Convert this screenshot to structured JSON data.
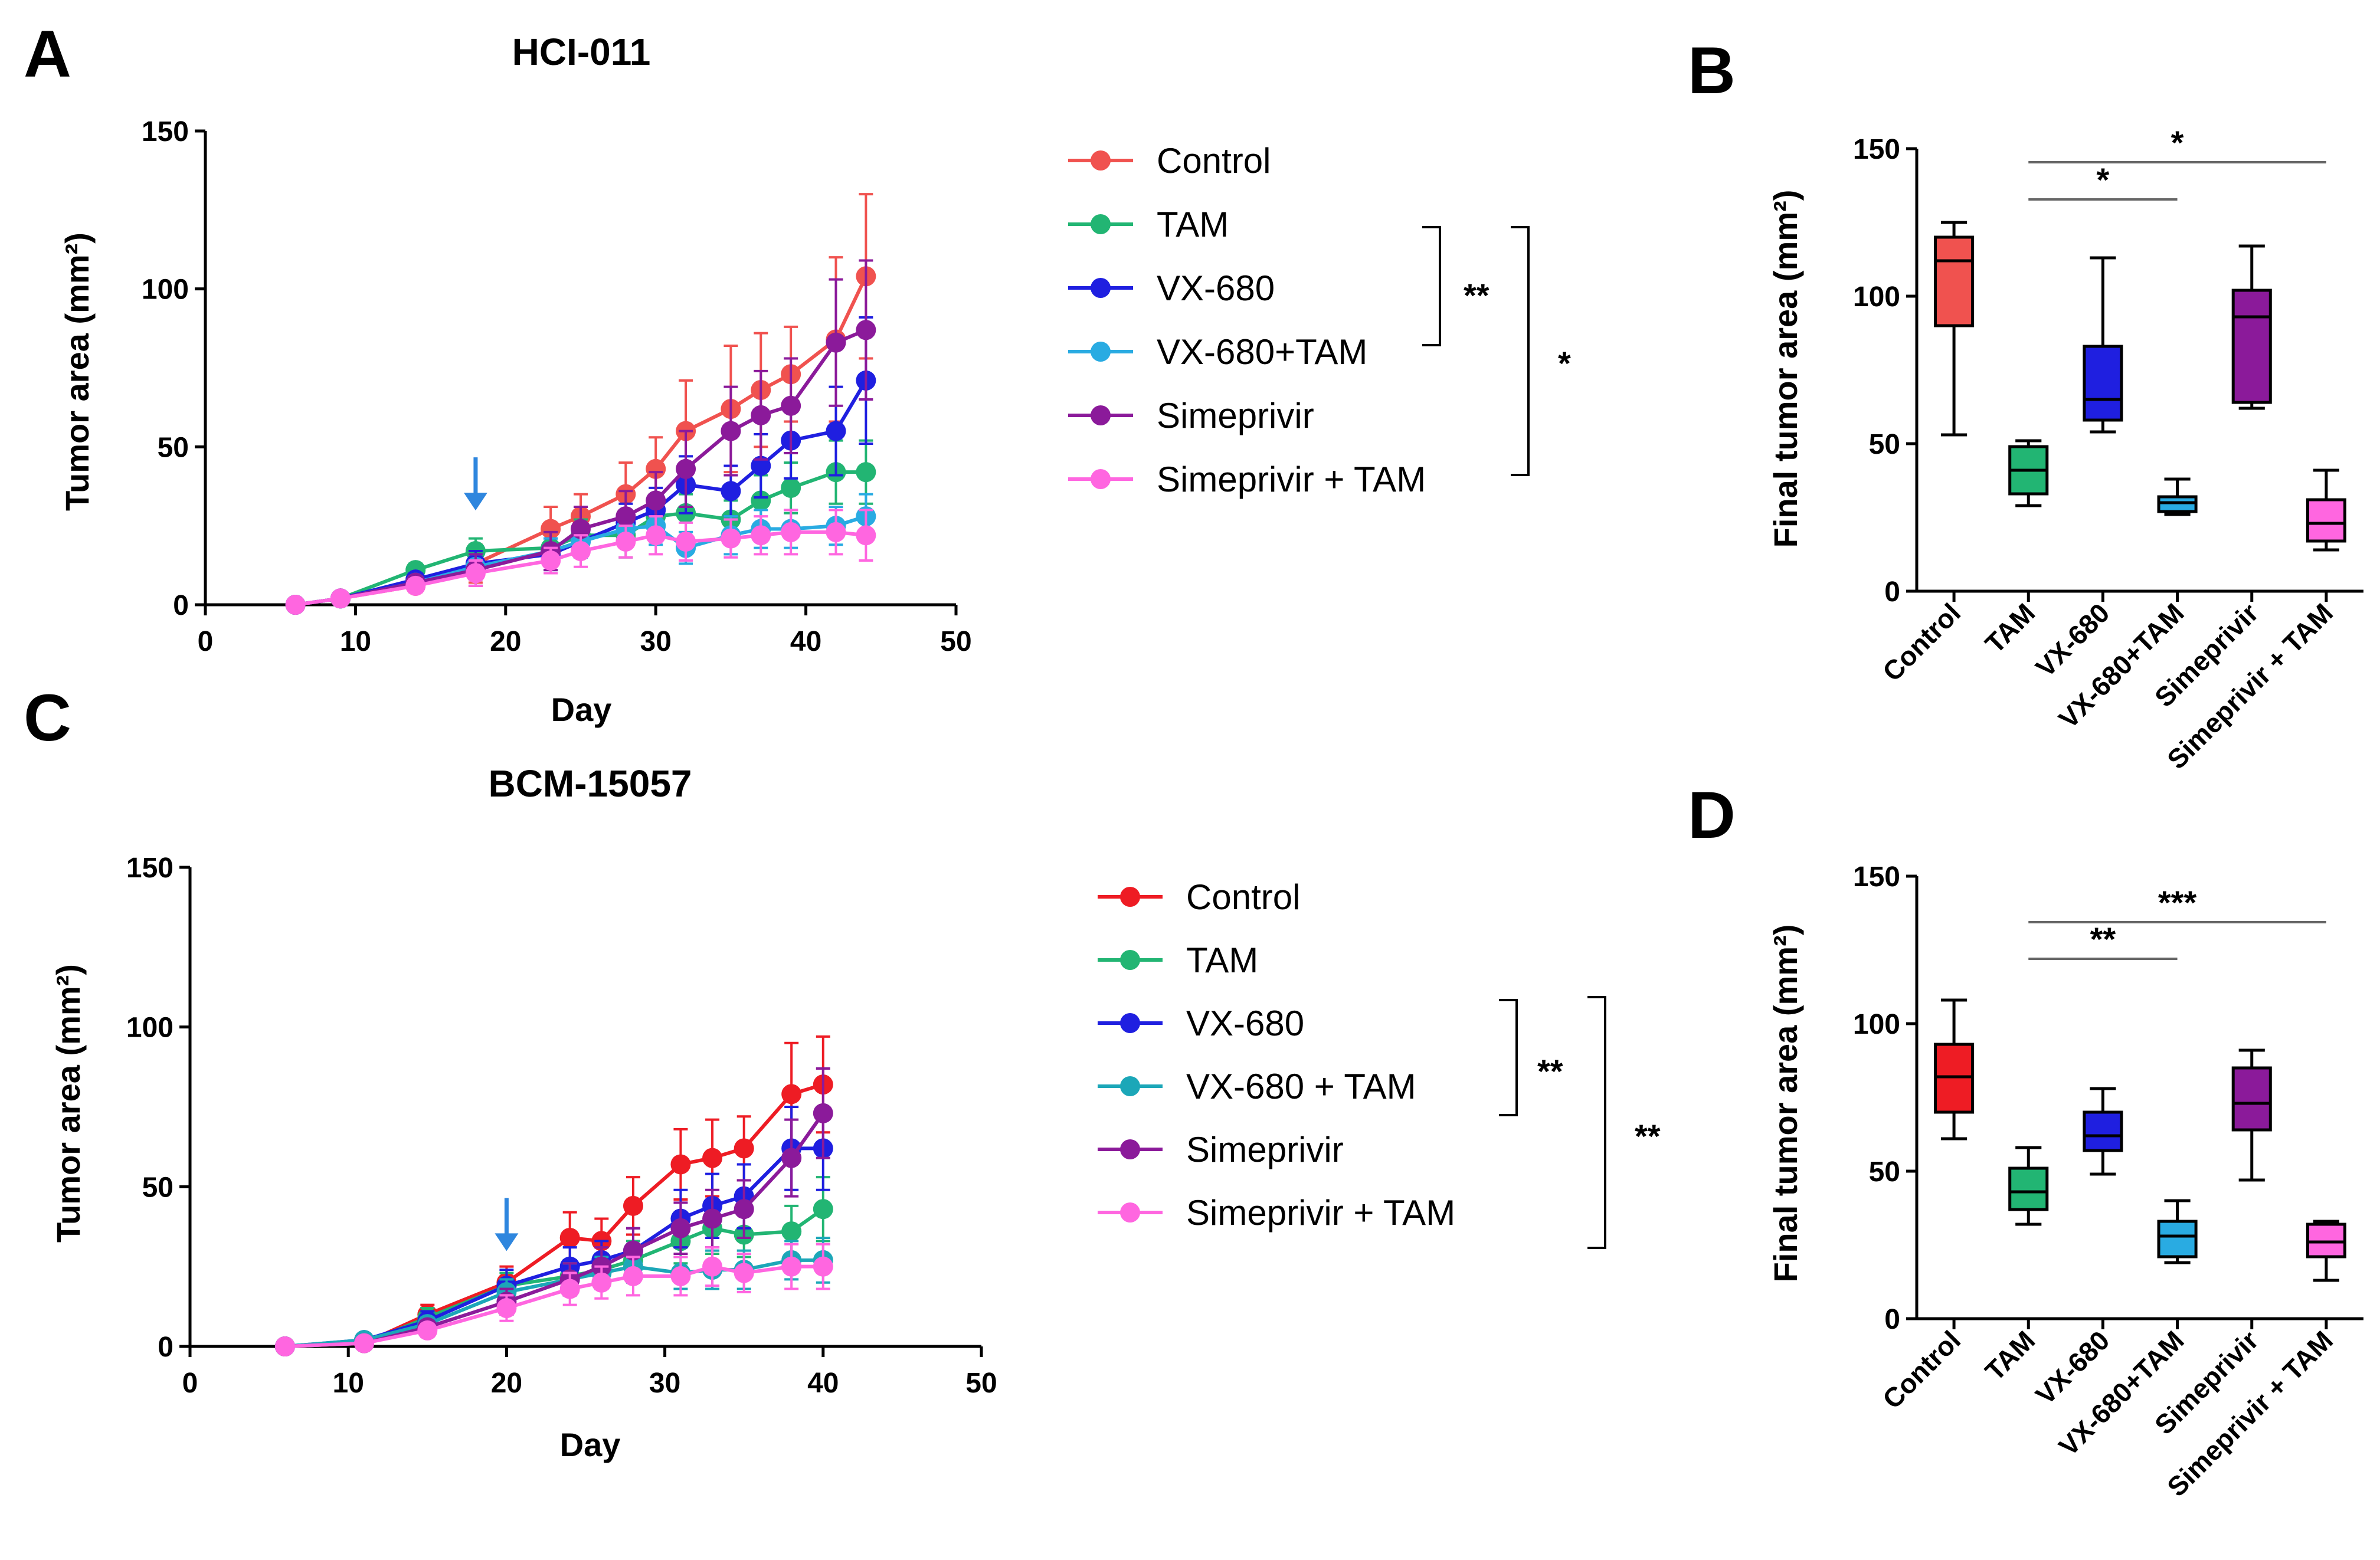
{
  "panels": {
    "A": {
      "letter": "A",
      "legend": [
        {
          "label": "Control",
          "color": "#F0524F"
        },
        {
          "label": "TAM",
          "color": "#22B573"
        },
        {
          "label": "VX-680",
          "color": "#1F1FE0"
        },
        {
          "label": "VX-680+TAM",
          "color": "#29ABE2"
        },
        {
          "label": "Simeprivir",
          "color": "#8B1A9A"
        },
        {
          "label": "Simeprivir + TAM",
          "color": "#FF66E0"
        }
      ],
      "sig_inner": "**",
      "sig_outer": "*",
      "arrow_day": 18
    },
    "B": {
      "letter": "B",
      "sig_lines": [
        {
          "label": "*",
          "from": "TAM",
          "to": "VX-680+TAM"
        },
        {
          "label": "*",
          "from": "TAM",
          "to": "Simeprivir + TAM"
        }
      ]
    },
    "C": {
      "letter": "C",
      "legend": [
        {
          "label": "Control",
          "color": "#EE1C24"
        },
        {
          "label": "TAM",
          "color": "#22B573"
        },
        {
          "label": "VX-680",
          "color": "#1F1FE0"
        },
        {
          "label": "VX-680 + TAM",
          "color": "#1CA7B8"
        },
        {
          "label": "Simeprivir",
          "color": "#8B1A9A"
        },
        {
          "label": "Simeprivir + TAM",
          "color": "#FF66E0"
        }
      ],
      "sig_inner": "**",
      "sig_outer": "**",
      "arrow_day": 20
    },
    "D": {
      "letter": "D",
      "sig_lines": [
        {
          "label": "**",
          "from": "TAM",
          "to": "VX-680+TAM"
        },
        {
          "label": "***",
          "from": "TAM",
          "to": "Simeprivir + TAM"
        }
      ]
    }
  },
  "chart_data": [
    {
      "id": "A",
      "type": "line",
      "title": "HCI-011",
      "xlabel": "Day",
      "ylabel": "Tumor area (mm²)",
      "xlim": [
        0,
        50
      ],
      "ylim": [
        0,
        150
      ],
      "xticks": [
        0,
        10,
        20,
        30,
        40,
        50
      ],
      "yticks": [
        0,
        50,
        100,
        150
      ],
      "x": [
        6,
        9,
        14,
        18,
        23,
        25,
        28,
        30,
        32,
        35,
        37,
        39,
        42,
        44
      ],
      "series": [
        {
          "name": "Control",
          "values": [
            0,
            2,
            6,
            13,
            24,
            28,
            35,
            43,
            55,
            62,
            68,
            73,
            84,
            104
          ],
          "err": [
            1,
            1,
            2,
            6,
            7,
            7,
            10,
            10,
            16,
            20,
            18,
            15,
            26,
            26
          ]
        },
        {
          "name": "TAM",
          "values": [
            0,
            2,
            11,
            17,
            18,
            22,
            22,
            28,
            29,
            27,
            33,
            37,
            42,
            42
          ],
          "err": [
            1,
            1,
            2,
            4,
            5,
            5,
            7,
            7,
            6,
            6,
            8,
            8,
            10,
            10
          ]
        },
        {
          "name": "VX-680",
          "values": [
            0,
            2,
            8,
            13,
            16,
            20,
            26,
            30,
            38,
            36,
            44,
            52,
            55,
            71
          ],
          "err": [
            1,
            1,
            2,
            4,
            5,
            5,
            6,
            7,
            9,
            8,
            10,
            12,
            14,
            20
          ]
        },
        {
          "name": "VX-680+TAM",
          "values": [
            0,
            2,
            7,
            12,
            17,
            20,
            24,
            25,
            18,
            22,
            24,
            24,
            25,
            28
          ],
          "err": [
            1,
            1,
            2,
            4,
            4,
            5,
            5,
            6,
            5,
            6,
            6,
            6,
            6,
            7
          ]
        },
        {
          "name": "Simeprivir",
          "values": [
            0,
            2,
            7,
            11,
            17,
            24,
            28,
            33,
            43,
            55,
            60,
            63,
            83,
            87
          ],
          "err": [
            1,
            1,
            2,
            5,
            6,
            7,
            8,
            9,
            12,
            14,
            14,
            15,
            20,
            22
          ]
        },
        {
          "name": "Simeprivir + TAM",
          "values": [
            0,
            2,
            6,
            10,
            14,
            17,
            20,
            22,
            20,
            21,
            22,
            23,
            23,
            22
          ],
          "err": [
            1,
            1,
            2,
            4,
            4,
            5,
            5,
            6,
            6,
            6,
            6,
            7,
            7,
            8
          ]
        }
      ]
    },
    {
      "id": "B",
      "type": "box",
      "ylabel": "Final tumor area  (mm²)",
      "ylim": [
        0,
        150
      ],
      "yticks": [
        0,
        50,
        100,
        150
      ],
      "categories": [
        "Control",
        "TAM",
        "VX-680",
        "VX-680+TAM",
        "Simeprivir",
        "Simeprivir + TAM"
      ],
      "colors": [
        "#F0524F",
        "#22B573",
        "#1F1FE0",
        "#29ABE2",
        "#8B1A9A",
        "#FF66E0"
      ],
      "boxes": [
        {
          "min": 53,
          "q1": 90,
          "median": 112,
          "q3": 120,
          "max": 125
        },
        {
          "min": 29,
          "q1": 33,
          "median": 41,
          "q3": 49,
          "max": 51
        },
        {
          "min": 54,
          "q1": 58,
          "median": 65,
          "q3": 83,
          "max": 113
        },
        {
          "min": 26,
          "q1": 27,
          "median": 30,
          "q3": 32,
          "max": 38
        },
        {
          "min": 62,
          "q1": 64,
          "median": 93,
          "q3": 102,
          "max": 117
        },
        {
          "min": 14,
          "q1": 17,
          "median": 23,
          "q3": 31,
          "max": 41
        }
      ]
    },
    {
      "id": "C",
      "type": "line",
      "title": "BCM-15057",
      "xlabel": "Day",
      "ylabel": "Tumor area (mm²)",
      "xlim": [
        0,
        50
      ],
      "ylim": [
        0,
        150
      ],
      "xticks": [
        0,
        10,
        20,
        30,
        40,
        50
      ],
      "yticks": [
        0,
        50,
        100,
        150
      ],
      "x": [
        6,
        11,
        15,
        20,
        24,
        26,
        28,
        31,
        33,
        35,
        38,
        40
      ],
      "series": [
        {
          "name": "Control",
          "values": [
            0,
            1,
            10,
            20,
            34,
            33,
            44,
            57,
            59,
            62,
            79,
            82
          ],
          "err": [
            1,
            1,
            3,
            5,
            8,
            7,
            9,
            11,
            12,
            10,
            16,
            15
          ]
        },
        {
          "name": "TAM",
          "values": [
            0,
            1,
            9,
            19,
            22,
            24,
            27,
            33,
            37,
            35,
            36,
            43
          ],
          "err": [
            1,
            1,
            3,
            4,
            5,
            5,
            6,
            7,
            8,
            7,
            8,
            10
          ]
        },
        {
          "name": "VX-680",
          "values": [
            0,
            2,
            8,
            19,
            25,
            27,
            30,
            40,
            44,
            47,
            62,
            62
          ],
          "err": [
            1,
            1,
            3,
            5,
            6,
            6,
            7,
            9,
            10,
            10,
            13,
            13
          ]
        },
        {
          "name": "VX-680 + TAM",
          "values": [
            0,
            2,
            7,
            17,
            21,
            23,
            25,
            23,
            24,
            24,
            27,
            27
          ],
          "err": [
            1,
            1,
            2,
            4,
            5,
            5,
            5,
            5,
            6,
            6,
            6,
            7
          ]
        },
        {
          "name": "Simeprivir",
          "values": [
            0,
            1,
            6,
            14,
            21,
            25,
            30,
            37,
            40,
            43,
            59,
            73
          ],
          "err": [
            1,
            1,
            2,
            4,
            5,
            6,
            7,
            8,
            9,
            9,
            12,
            14
          ]
        },
        {
          "name": "Simeprivir + TAM",
          "values": [
            0,
            1,
            5,
            12,
            18,
            20,
            22,
            22,
            25,
            23,
            25,
            25
          ],
          "err": [
            1,
            1,
            2,
            4,
            5,
            5,
            6,
            6,
            6,
            6,
            7,
            7
          ]
        }
      ]
    },
    {
      "id": "D",
      "type": "box",
      "ylabel": "Final tumor area  (mm²)",
      "ylim": [
        0,
        150
      ],
      "yticks": [
        0,
        50,
        100,
        150
      ],
      "categories": [
        "Control",
        "TAM",
        "VX-680",
        "VX-680+TAM",
        "Simeprivir",
        "Simeprivir + TAM"
      ],
      "colors": [
        "#EE1C24",
        "#22B573",
        "#1F1FE0",
        "#29ABE2",
        "#8B1A9A",
        "#FF66E0"
      ],
      "boxes": [
        {
          "min": 61,
          "q1": 70,
          "median": 82,
          "q3": 93,
          "max": 108
        },
        {
          "min": 32,
          "q1": 37,
          "median": 43,
          "q3": 51,
          "max": 58
        },
        {
          "min": 49,
          "q1": 57,
          "median": 62,
          "q3": 70,
          "max": 78
        },
        {
          "min": 19,
          "q1": 21,
          "median": 28,
          "q3": 33,
          "max": 40
        },
        {
          "min": 47,
          "q1": 64,
          "median": 73,
          "q3": 85,
          "max": 91
        },
        {
          "min": 13,
          "q1": 21,
          "median": 26,
          "q3": 32,
          "max": 33
        }
      ]
    }
  ]
}
